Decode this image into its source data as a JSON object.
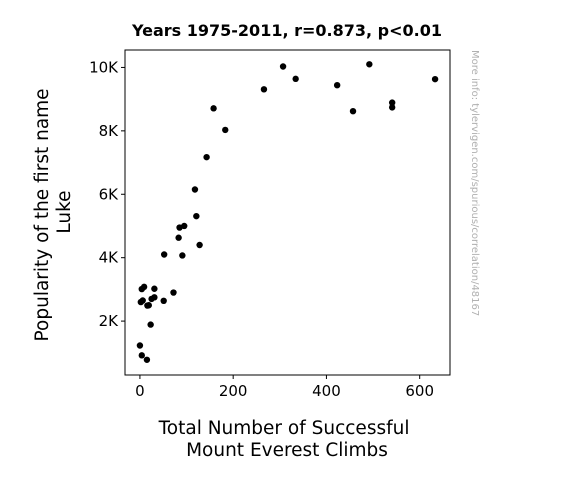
{
  "chart_data": {
    "type": "scatter",
    "title": "Years 1975-2011, r=0.873, p<0.01",
    "xlabel": [
      "Total Number of Successful",
      "Mount Everest Climbs"
    ],
    "ylabel": [
      "Popularity of the first name",
      "Luke"
    ],
    "xlim": [
      -32,
      665
    ],
    "ylim": [
      300,
      10550
    ],
    "xticks": [
      0,
      200,
      400,
      600
    ],
    "xtick_labels": [
      "0",
      "200",
      "400",
      "600"
    ],
    "yticks": [
      2000,
      4000,
      6000,
      8000,
      10000
    ],
    "ytick_labels": [
      "2K",
      "4K",
      "6K",
      "8K",
      "10K"
    ],
    "grid": false,
    "marker_color": "#000000",
    "points": [
      {
        "x": 0,
        "y": 1230
      },
      {
        "x": 4,
        "y": 920
      },
      {
        "x": 15,
        "y": 780
      },
      {
        "x": 23,
        "y": 1890
      },
      {
        "x": 2,
        "y": 2600
      },
      {
        "x": 6,
        "y": 2650
      },
      {
        "x": 4,
        "y": 3010
      },
      {
        "x": 9,
        "y": 3080
      },
      {
        "x": 16,
        "y": 2490
      },
      {
        "x": 19,
        "y": 2500
      },
      {
        "x": 25,
        "y": 2700
      },
      {
        "x": 31,
        "y": 2750
      },
      {
        "x": 31,
        "y": 3020
      },
      {
        "x": 51,
        "y": 2640
      },
      {
        "x": 52,
        "y": 4100
      },
      {
        "x": 72,
        "y": 2900
      },
      {
        "x": 83,
        "y": 4630
      },
      {
        "x": 85,
        "y": 4950
      },
      {
        "x": 91,
        "y": 4070
      },
      {
        "x": 95,
        "y": 5000
      },
      {
        "x": 118,
        "y": 6150
      },
      {
        "x": 121,
        "y": 5310
      },
      {
        "x": 128,
        "y": 4400
      },
      {
        "x": 143,
        "y": 7170
      },
      {
        "x": 158,
        "y": 8710
      },
      {
        "x": 183,
        "y": 8030
      },
      {
        "x": 266,
        "y": 9310
      },
      {
        "x": 307,
        "y": 10030
      },
      {
        "x": 334,
        "y": 9640
      },
      {
        "x": 423,
        "y": 9440
      },
      {
        "x": 457,
        "y": 8620
      },
      {
        "x": 492,
        "y": 10100
      },
      {
        "x": 541,
        "y": 8890
      },
      {
        "x": 541,
        "y": 8740
      },
      {
        "x": 633,
        "y": 9630
      }
    ]
  },
  "watermark": "More info: tylervigen.com/spurious/correlation/48167"
}
